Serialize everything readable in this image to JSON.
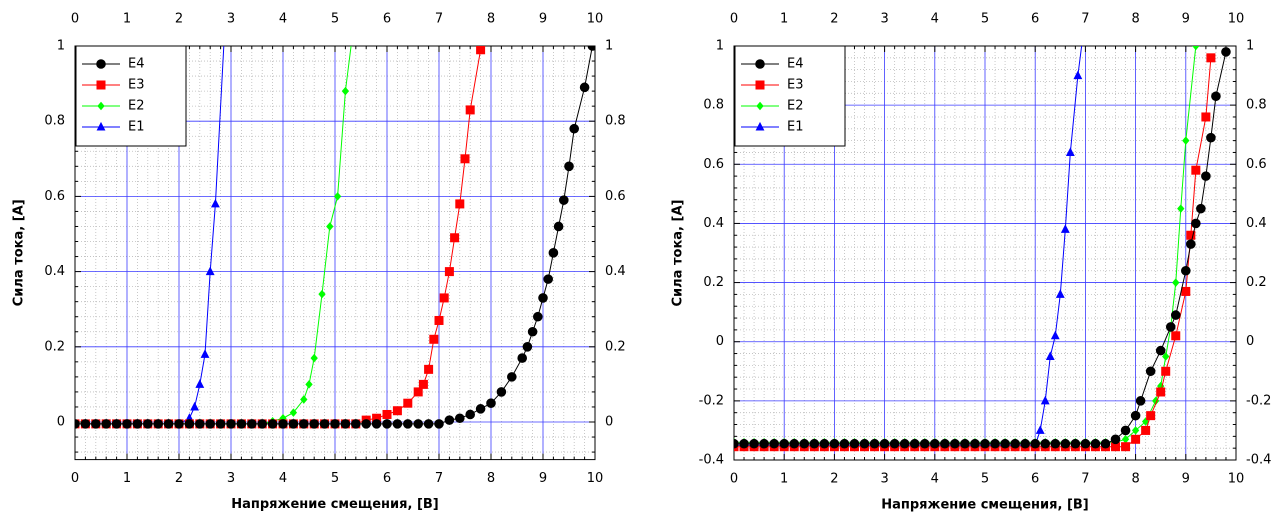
{
  "chart_data": [
    {
      "type": "line",
      "xlabel": "Напряжение смещения, [В]",
      "ylabel": "Сила тока, [А]",
      "xlim": [
        0,
        10
      ],
      "ylim": [
        -0.1,
        1
      ],
      "xticks": [
        0,
        1,
        2,
        3,
        4,
        5,
        6,
        7,
        8,
        9,
        10
      ],
      "yticks": [
        0,
        0.2,
        0.4,
        0.6,
        0.8,
        1
      ],
      "grid": true,
      "minor_grid": true,
      "legend": "upper left",
      "series": [
        {
          "name": "E4",
          "color": "#000000",
          "marker": "circle",
          "x": [
            0,
            0.2,
            0.4,
            0.6,
            0.8,
            1,
            1.2,
            1.4,
            1.6,
            1.8,
            2,
            2.2,
            2.4,
            2.6,
            2.8,
            3,
            3.2,
            3.4,
            3.6,
            3.8,
            4,
            4.2,
            4.4,
            4.6,
            4.8,
            5,
            5.2,
            5.4,
            5.6,
            5.8,
            6,
            6.2,
            6.4,
            6.6,
            6.8,
            7,
            7.2,
            7.4,
            7.6,
            7.8,
            8,
            8.2,
            8.4,
            8.6,
            8.7,
            8.8,
            8.9,
            9,
            9.1,
            9.2,
            9.3,
            9.4,
            9.5,
            9.6,
            9.8,
            9.95
          ],
          "values": [
            -0.005,
            -0.005,
            -0.005,
            -0.005,
            -0.005,
            -0.005,
            -0.005,
            -0.005,
            -0.005,
            -0.005,
            -0.005,
            -0.005,
            -0.005,
            -0.005,
            -0.005,
            -0.005,
            -0.005,
            -0.005,
            -0.005,
            -0.005,
            -0.005,
            -0.005,
            -0.005,
            -0.005,
            -0.005,
            -0.005,
            -0.005,
            -0.005,
            -0.005,
            -0.005,
            -0.005,
            -0.005,
            -0.005,
            -0.005,
            -0.005,
            -0.005,
            0.005,
            0.01,
            0.02,
            0.035,
            0.05,
            0.08,
            0.12,
            0.17,
            0.2,
            0.24,
            0.28,
            0.33,
            0.38,
            0.45,
            0.52,
            0.59,
            0.68,
            0.78,
            0.89,
            1
          ]
        },
        {
          "name": "E3",
          "color": "#ff0000",
          "marker": "square",
          "x": [
            0,
            0.2,
            0.4,
            0.6,
            0.8,
            1,
            1.2,
            1.4,
            1.6,
            1.8,
            2,
            2.2,
            2.4,
            2.6,
            2.8,
            3,
            3.2,
            3.4,
            3.6,
            3.8,
            4,
            4.2,
            4.4,
            4.6,
            4.8,
            5,
            5.2,
            5.4,
            5.6,
            5.8,
            6,
            6.2,
            6.4,
            6.6,
            6.7,
            6.8,
            6.9,
            7,
            7.1,
            7.2,
            7.3,
            7.4,
            7.5,
            7.6,
            7.8
          ],
          "values": [
            -0.005,
            -0.005,
            -0.005,
            -0.005,
            -0.005,
            -0.005,
            -0.005,
            -0.005,
            -0.005,
            -0.005,
            -0.005,
            -0.005,
            -0.005,
            -0.005,
            -0.005,
            -0.005,
            -0.005,
            -0.005,
            -0.005,
            -0.005,
            -0.005,
            -0.005,
            -0.005,
            -0.005,
            -0.005,
            -0.005,
            -0.005,
            -0.005,
            0.005,
            0.01,
            0.02,
            0.03,
            0.05,
            0.08,
            0.1,
            0.14,
            0.22,
            0.27,
            0.33,
            0.4,
            0.49,
            0.58,
            0.7,
            0.83,
            0.99
          ]
        },
        {
          "name": "E2",
          "color": "#00ff00",
          "marker": "diamond",
          "x": [
            0,
            0.2,
            0.4,
            0.6,
            0.8,
            1,
            1.2,
            1.4,
            1.6,
            1.8,
            2,
            2.2,
            2.4,
            2.6,
            2.8,
            3,
            3.2,
            3.4,
            3.6,
            3.8,
            4,
            4.2,
            4.4,
            4.5,
            4.6,
            4.75,
            4.9,
            5.05,
            5.2,
            5.4
          ],
          "values": [
            -0.005,
            -0.005,
            -0.005,
            -0.005,
            -0.005,
            -0.005,
            -0.005,
            -0.005,
            -0.005,
            -0.005,
            -0.005,
            -0.005,
            -0.005,
            -0.005,
            -0.005,
            -0.005,
            -0.005,
            -0.005,
            -0.005,
            0.002,
            0.01,
            0.025,
            0.06,
            0.1,
            0.17,
            0.34,
            0.52,
            0.6,
            0.88,
            1.1
          ]
        },
        {
          "name": "E1",
          "color": "#0000ff",
          "marker": "triangle",
          "x": [
            0,
            0.2,
            0.4,
            0.6,
            0.8,
            1,
            1.2,
            1.4,
            1.6,
            1.8,
            2,
            2.2,
            2.3,
            2.4,
            2.5,
            2.6,
            2.7,
            2.9
          ],
          "values": [
            -0.005,
            -0.005,
            -0.005,
            -0.005,
            -0.005,
            -0.005,
            -0.005,
            -0.005,
            -0.005,
            -0.005,
            -0.005,
            0.01,
            0.04,
            0.1,
            0.18,
            0.4,
            0.58,
            1.1
          ]
        }
      ]
    },
    {
      "type": "line",
      "xlabel": "Напряжение смещения, [В]",
      "ylabel": "Сила тока, [А]",
      "xlim": [
        0,
        10
      ],
      "ylim": [
        -0.4,
        1
      ],
      "xticks": [
        0,
        1,
        2,
        3,
        4,
        5,
        6,
        7,
        8,
        9,
        10
      ],
      "yticks": [
        -0.4,
        -0.2,
        0,
        0.2,
        0.4,
        0.6,
        0.8,
        1
      ],
      "grid": true,
      "minor_grid": true,
      "legend": "upper left",
      "series": [
        {
          "name": "E4",
          "color": "#000000",
          "marker": "circle",
          "x": [
            0,
            0.2,
            0.4,
            0.6,
            0.8,
            1,
            1.2,
            1.4,
            1.6,
            1.8,
            2,
            2.2,
            2.4,
            2.6,
            2.8,
            3,
            3.2,
            3.4,
            3.6,
            3.8,
            4,
            4.2,
            4.4,
            4.6,
            4.8,
            5,
            5.2,
            5.4,
            5.6,
            5.8,
            6,
            6.2,
            6.4,
            6.6,
            6.8,
            7,
            7.2,
            7.4,
            7.6,
            7.8,
            8,
            8.1,
            8.3,
            8.5,
            8.7,
            8.8,
            9,
            9.1,
            9.2,
            9.3,
            9.4,
            9.5,
            9.6,
            9.8
          ],
          "values": [
            -0.345,
            -0.345,
            -0.345,
            -0.345,
            -0.345,
            -0.345,
            -0.345,
            -0.345,
            -0.345,
            -0.345,
            -0.345,
            -0.345,
            -0.345,
            -0.345,
            -0.345,
            -0.345,
            -0.345,
            -0.345,
            -0.345,
            -0.345,
            -0.345,
            -0.345,
            -0.345,
            -0.345,
            -0.345,
            -0.345,
            -0.345,
            -0.345,
            -0.345,
            -0.345,
            -0.345,
            -0.345,
            -0.345,
            -0.345,
            -0.345,
            -0.345,
            -0.345,
            -0.345,
            -0.33,
            -0.3,
            -0.25,
            -0.2,
            -0.1,
            -0.03,
            0.05,
            0.09,
            0.24,
            0.33,
            0.4,
            0.45,
            0.56,
            0.69,
            0.83,
            0.98
          ]
        },
        {
          "name": "E3",
          "color": "#ff0000",
          "marker": "square",
          "x": [
            0,
            0.2,
            0.4,
            0.6,
            0.8,
            1,
            1.2,
            1.4,
            1.6,
            1.8,
            2,
            2.2,
            2.4,
            2.6,
            2.8,
            3,
            3.2,
            3.4,
            3.6,
            3.8,
            4,
            4.2,
            4.4,
            4.6,
            4.8,
            5,
            5.2,
            5.4,
            5.6,
            5.8,
            6,
            6.2,
            6.4,
            6.6,
            6.8,
            7,
            7.2,
            7.4,
            7.6,
            7.8,
            8,
            8.2,
            8.3,
            8.5,
            8.6,
            8.8,
            9,
            9.1,
            9.2,
            9.4,
            9.5
          ],
          "values": [
            -0.355,
            -0.355,
            -0.355,
            -0.355,
            -0.355,
            -0.355,
            -0.355,
            -0.355,
            -0.355,
            -0.355,
            -0.355,
            -0.355,
            -0.355,
            -0.355,
            -0.355,
            -0.355,
            -0.355,
            -0.355,
            -0.355,
            -0.355,
            -0.355,
            -0.355,
            -0.355,
            -0.355,
            -0.355,
            -0.355,
            -0.355,
            -0.355,
            -0.355,
            -0.355,
            -0.355,
            -0.355,
            -0.355,
            -0.355,
            -0.355,
            -0.355,
            -0.355,
            -0.355,
            -0.355,
            -0.355,
            -0.33,
            -0.3,
            -0.25,
            -0.17,
            -0.1,
            0.02,
            0.17,
            0.36,
            0.58,
            0.76,
            0.96
          ]
        },
        {
          "name": "E2",
          "color": "#00ff00",
          "marker": "diamond",
          "x": [
            0,
            0.2,
            0.4,
            0.6,
            0.8,
            1,
            1.2,
            1.4,
            1.6,
            1.8,
            2,
            2.2,
            2.4,
            2.6,
            2.8,
            3,
            3.2,
            3.4,
            3.6,
            3.8,
            4,
            4.2,
            4.4,
            4.6,
            4.8,
            5,
            5.2,
            5.4,
            5.6,
            5.8,
            6,
            6.2,
            6.4,
            6.6,
            6.8,
            7,
            7.2,
            7.4,
            7.6,
            7.8,
            8,
            8.2,
            8.4,
            8.5,
            8.6,
            8.7,
            8.8,
            8.9,
            9,
            9.2
          ],
          "values": [
            -0.34,
            -0.34,
            -0.34,
            -0.34,
            -0.34,
            -0.34,
            -0.34,
            -0.34,
            -0.34,
            -0.34,
            -0.34,
            -0.34,
            -0.34,
            -0.34,
            -0.34,
            -0.34,
            -0.34,
            -0.34,
            -0.34,
            -0.34,
            -0.34,
            -0.34,
            -0.34,
            -0.34,
            -0.34,
            -0.34,
            -0.34,
            -0.34,
            -0.34,
            -0.34,
            -0.34,
            -0.34,
            -0.34,
            -0.34,
            -0.34,
            -0.34,
            -0.34,
            -0.34,
            -0.34,
            -0.33,
            -0.3,
            -0.27,
            -0.2,
            -0.15,
            -0.05,
            0.05,
            0.2,
            0.45,
            0.68,
            1
          ]
        },
        {
          "name": "E1",
          "color": "#0000ff",
          "marker": "triangle",
          "x": [
            0,
            0.2,
            0.4,
            0.6,
            0.8,
            1,
            1.2,
            1.4,
            1.6,
            1.8,
            2,
            2.2,
            2.4,
            2.6,
            2.8,
            3,
            3.2,
            3.4,
            3.6,
            3.8,
            4,
            4.2,
            4.4,
            4.6,
            4.8,
            5,
            5.2,
            5.4,
            5.6,
            5.8,
            6,
            6.1,
            6.2,
            6.3,
            6.4,
            6.5,
            6.6,
            6.7,
            6.85,
            7
          ],
          "values": [
            -0.35,
            -0.35,
            -0.35,
            -0.35,
            -0.35,
            -0.35,
            -0.35,
            -0.35,
            -0.35,
            -0.35,
            -0.35,
            -0.35,
            -0.35,
            -0.35,
            -0.35,
            -0.35,
            -0.35,
            -0.35,
            -0.35,
            -0.35,
            -0.35,
            -0.35,
            -0.35,
            -0.35,
            -0.35,
            -0.35,
            -0.35,
            -0.35,
            -0.35,
            -0.35,
            -0.35,
            -0.3,
            -0.2,
            -0.05,
            0.02,
            0.16,
            0.38,
            0.64,
            0.9,
            1.1
          ]
        }
      ]
    }
  ]
}
